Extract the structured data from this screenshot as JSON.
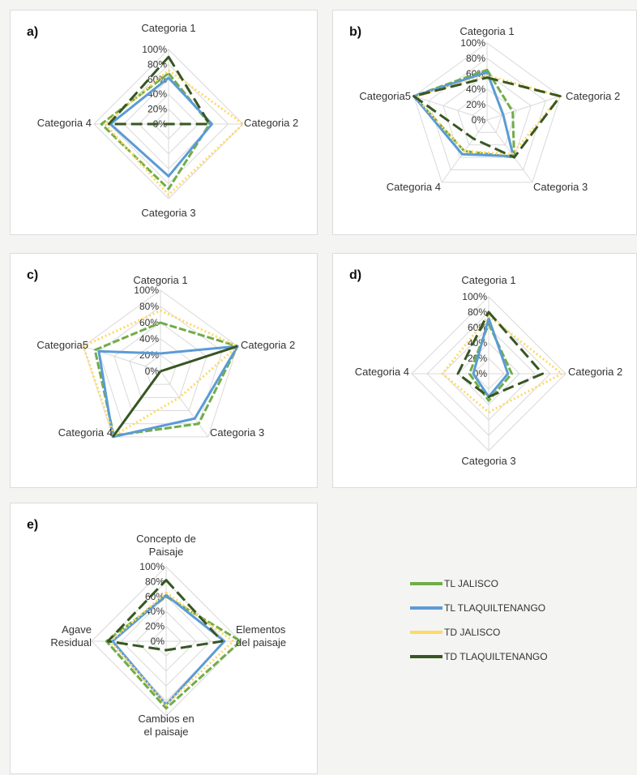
{
  "series_names": [
    "TL JALISCO",
    "TL TLAQUILTENANGO",
    "TD JALISCO",
    "TD TLAQUILTENANGO"
  ],
  "series_colors": [
    "#70ad47",
    "#5b9bd5",
    "#ffd966",
    "#375623"
  ],
  "series_dash": [
    "solid-dashed",
    "solid",
    "dotted",
    "long-dashed"
  ],
  "chart_data": [
    {
      "type": "radar",
      "panel_label": "a)",
      "categories": [
        "Categoria 1",
        "Categoria 2",
        "Categoria 3",
        "Categoria 4"
      ],
      "tick_labels": [
        "0%",
        "20%",
        "40%",
        "60%",
        "80%",
        "100%"
      ],
      "ylim": [
        0,
        100
      ],
      "series": [
        {
          "name": "TL JALISCO",
          "values": [
            68,
            55,
            87,
            90
          ]
        },
        {
          "name": "TL TLAQUILTENANGO",
          "values": [
            62,
            58,
            70,
            78
          ]
        },
        {
          "name": "TD JALISCO",
          "values": [
            72,
            100,
            95,
            85
          ]
        },
        {
          "name": "TD TLAQUILTENANGO",
          "values": [
            90,
            55,
            0,
            80
          ]
        }
      ]
    },
    {
      "type": "radar",
      "panel_label": "b)",
      "categories": [
        "Categoria 1",
        "Categoria 2",
        "Categoria 3",
        "Categoria 4",
        "Categoria5"
      ],
      "tick_labels": [
        "0%",
        "20%",
        "40%",
        "60%",
        "80%",
        "100%"
      ],
      "ylim": [
        0,
        100
      ],
      "series": [
        {
          "name": "TL JALISCO",
          "values": [
            65,
            35,
            60,
            50,
            100
          ]
        },
        {
          "name": "TL TLAQUILTENANGO",
          "values": [
            62,
            22,
            58,
            55,
            100
          ]
        },
        {
          "name": "TD JALISCO",
          "values": [
            58,
            100,
            55,
            50,
            98
          ]
        },
        {
          "name": "TD TLAQUILTENANGO",
          "values": [
            55,
            100,
            60,
            30,
            100
          ]
        }
      ]
    },
    {
      "type": "radar",
      "panel_label": "c)",
      "categories": [
        "Categoria 1",
        "Categoria 2",
        "Categoria 3",
        "Categoria 4",
        "Categoria5"
      ],
      "tick_labels": [
        "0%",
        "20%",
        "40%",
        "60%",
        "80%",
        "100%"
      ],
      "ylim": [
        0,
        100
      ],
      "series": [
        {
          "name": "TL JALISCO",
          "values": [
            60,
            100,
            80,
            98,
            85
          ]
        },
        {
          "name": "TL TLAQUILTENANGO",
          "values": [
            22,
            100,
            72,
            100,
            80
          ]
        },
        {
          "name": "TD JALISCO",
          "values": [
            75,
            100,
            40,
            98,
            100
          ]
        },
        {
          "name": "TD TLAQUILTENANGO",
          "values": [
            0,
            100,
            0,
            100,
            0
          ]
        }
      ]
    },
    {
      "type": "radar",
      "panel_label": "d)",
      "categories": [
        "Categoria 1",
        "Categoria 2",
        "Categoria 3",
        "Categoria 4"
      ],
      "tick_labels": [
        "0%",
        "20%",
        "40%",
        "60%",
        "80%",
        "100%"
      ],
      "ylim": [
        0,
        100
      ],
      "series": [
        {
          "name": "TL JALISCO",
          "values": [
            65,
            30,
            35,
            25
          ]
        },
        {
          "name": "TL TLAQUILTENANGO",
          "values": [
            72,
            25,
            30,
            20
          ]
        },
        {
          "name": "TD JALISCO",
          "values": [
            75,
            95,
            50,
            60
          ]
        },
        {
          "name": "TD TLAQUILTENANGO",
          "values": [
            80,
            70,
            30,
            40
          ]
        }
      ]
    },
    {
      "type": "radar",
      "panel_label": "e)",
      "categories": [
        "Concepto de Paisaje",
        "Elementos del paisaje",
        "Cambios en el paisaje",
        "Agave Residual"
      ],
      "tick_labels": [
        "0%",
        "20%",
        "40%",
        "60%",
        "80%",
        "100%"
      ],
      "ylim": [
        0,
        100
      ],
      "series": [
        {
          "name": "TL JALISCO",
          "values": [
            60,
            100,
            90,
            80
          ]
        },
        {
          "name": "TL TLAQUILTENANGO",
          "values": [
            62,
            78,
            85,
            72
          ]
        },
        {
          "name": "TD JALISCO",
          "values": [
            65,
            90,
            85,
            75
          ]
        },
        {
          "name": "TD TLAQUILTENANGO",
          "values": [
            82,
            75,
            12,
            78
          ]
        }
      ]
    }
  ]
}
